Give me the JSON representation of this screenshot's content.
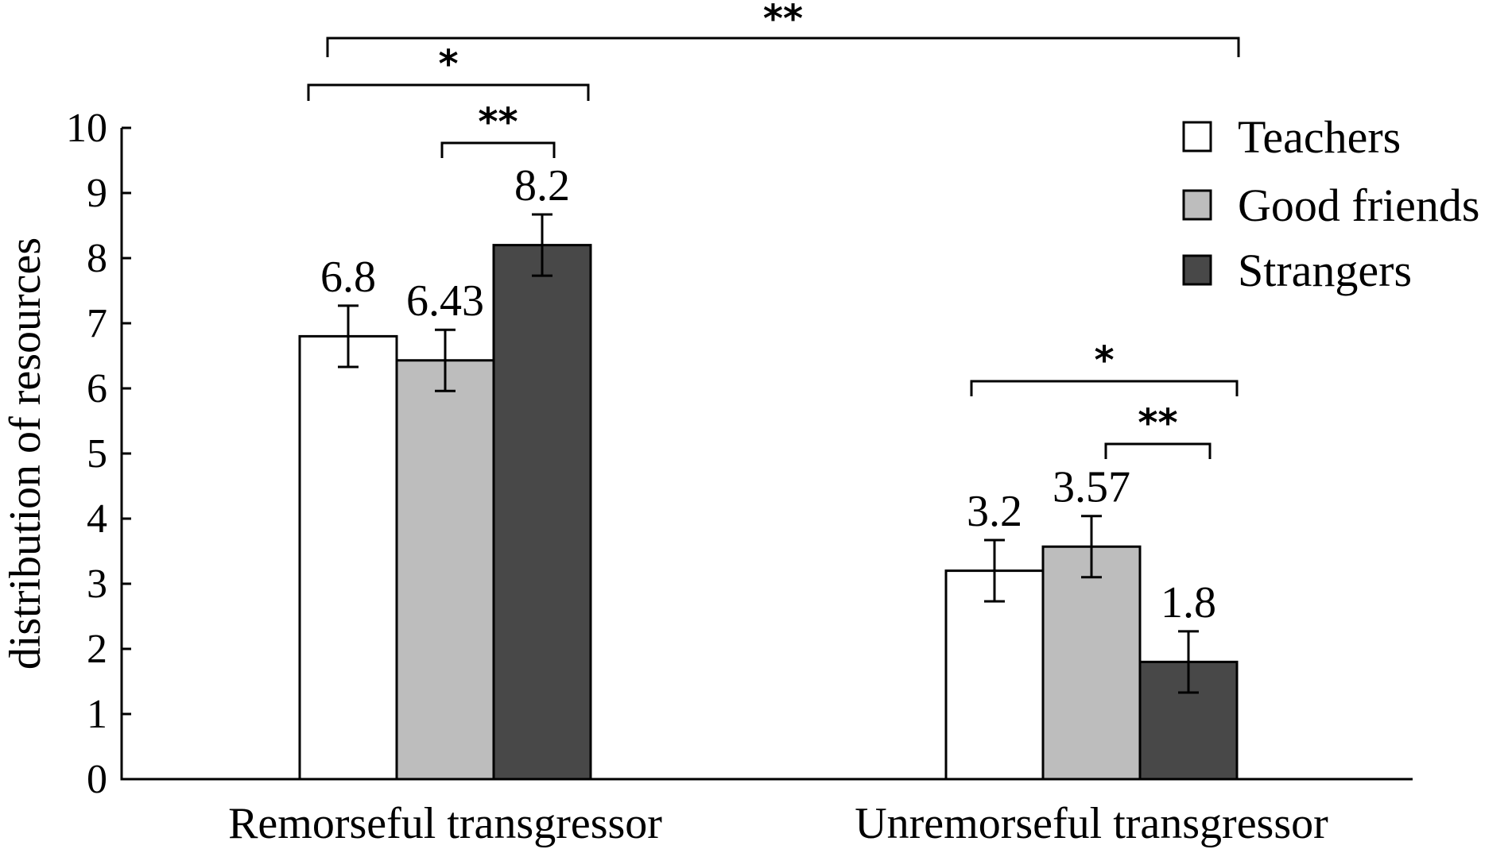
{
  "chart_data": {
    "type": "bar",
    "title": "",
    "xlabel": "",
    "ylabel": "distribution of resources",
    "ylim": [
      0,
      10
    ],
    "yticks": [
      "0",
      "1",
      "2",
      "3",
      "4",
      "5",
      "6",
      "7",
      "8",
      "9",
      "10"
    ],
    "categories": [
      "Remorseful transgressor",
      "Unremorseful transgressor"
    ],
    "series": [
      {
        "name": "Teachers",
        "color": "#ffffff",
        "values": [
          6.8,
          3.2
        ],
        "labels": [
          "6.8",
          "3.2"
        ],
        "errors": [
          0.47,
          0.47
        ]
      },
      {
        "name": "Good friends",
        "color": "#bdbdbd",
        "values": [
          6.43,
          3.57
        ],
        "labels": [
          "6.43",
          "3.57"
        ],
        "errors": [
          0.47,
          0.47
        ]
      },
      {
        "name": "Strangers",
        "color": "#484848",
        "values": [
          8.2,
          1.8
        ],
        "labels": [
          "8.2",
          "1.8"
        ],
        "errors": [
          0.47,
          0.47
        ]
      }
    ],
    "legend": {
      "position": "top-right"
    },
    "significance": [
      {
        "label": "**",
        "from": "Remorseful transgressor",
        "to": "Unremorseful transgressor"
      },
      {
        "label": "*",
        "from": "Remorseful transgressor / Teachers",
        "to": "Remorseful transgressor / Strangers"
      },
      {
        "label": "**",
        "from": "Remorseful transgressor / Good friends",
        "to": "Remorseful transgressor / Strangers"
      },
      {
        "label": "*",
        "from": "Unremorseful transgressor / Teachers",
        "to": "Unremorseful transgressor / Strangers"
      },
      {
        "label": "**",
        "from": "Unremorseful transgressor / Good friends",
        "to": "Unremorseful transgressor / Strangers"
      }
    ]
  }
}
